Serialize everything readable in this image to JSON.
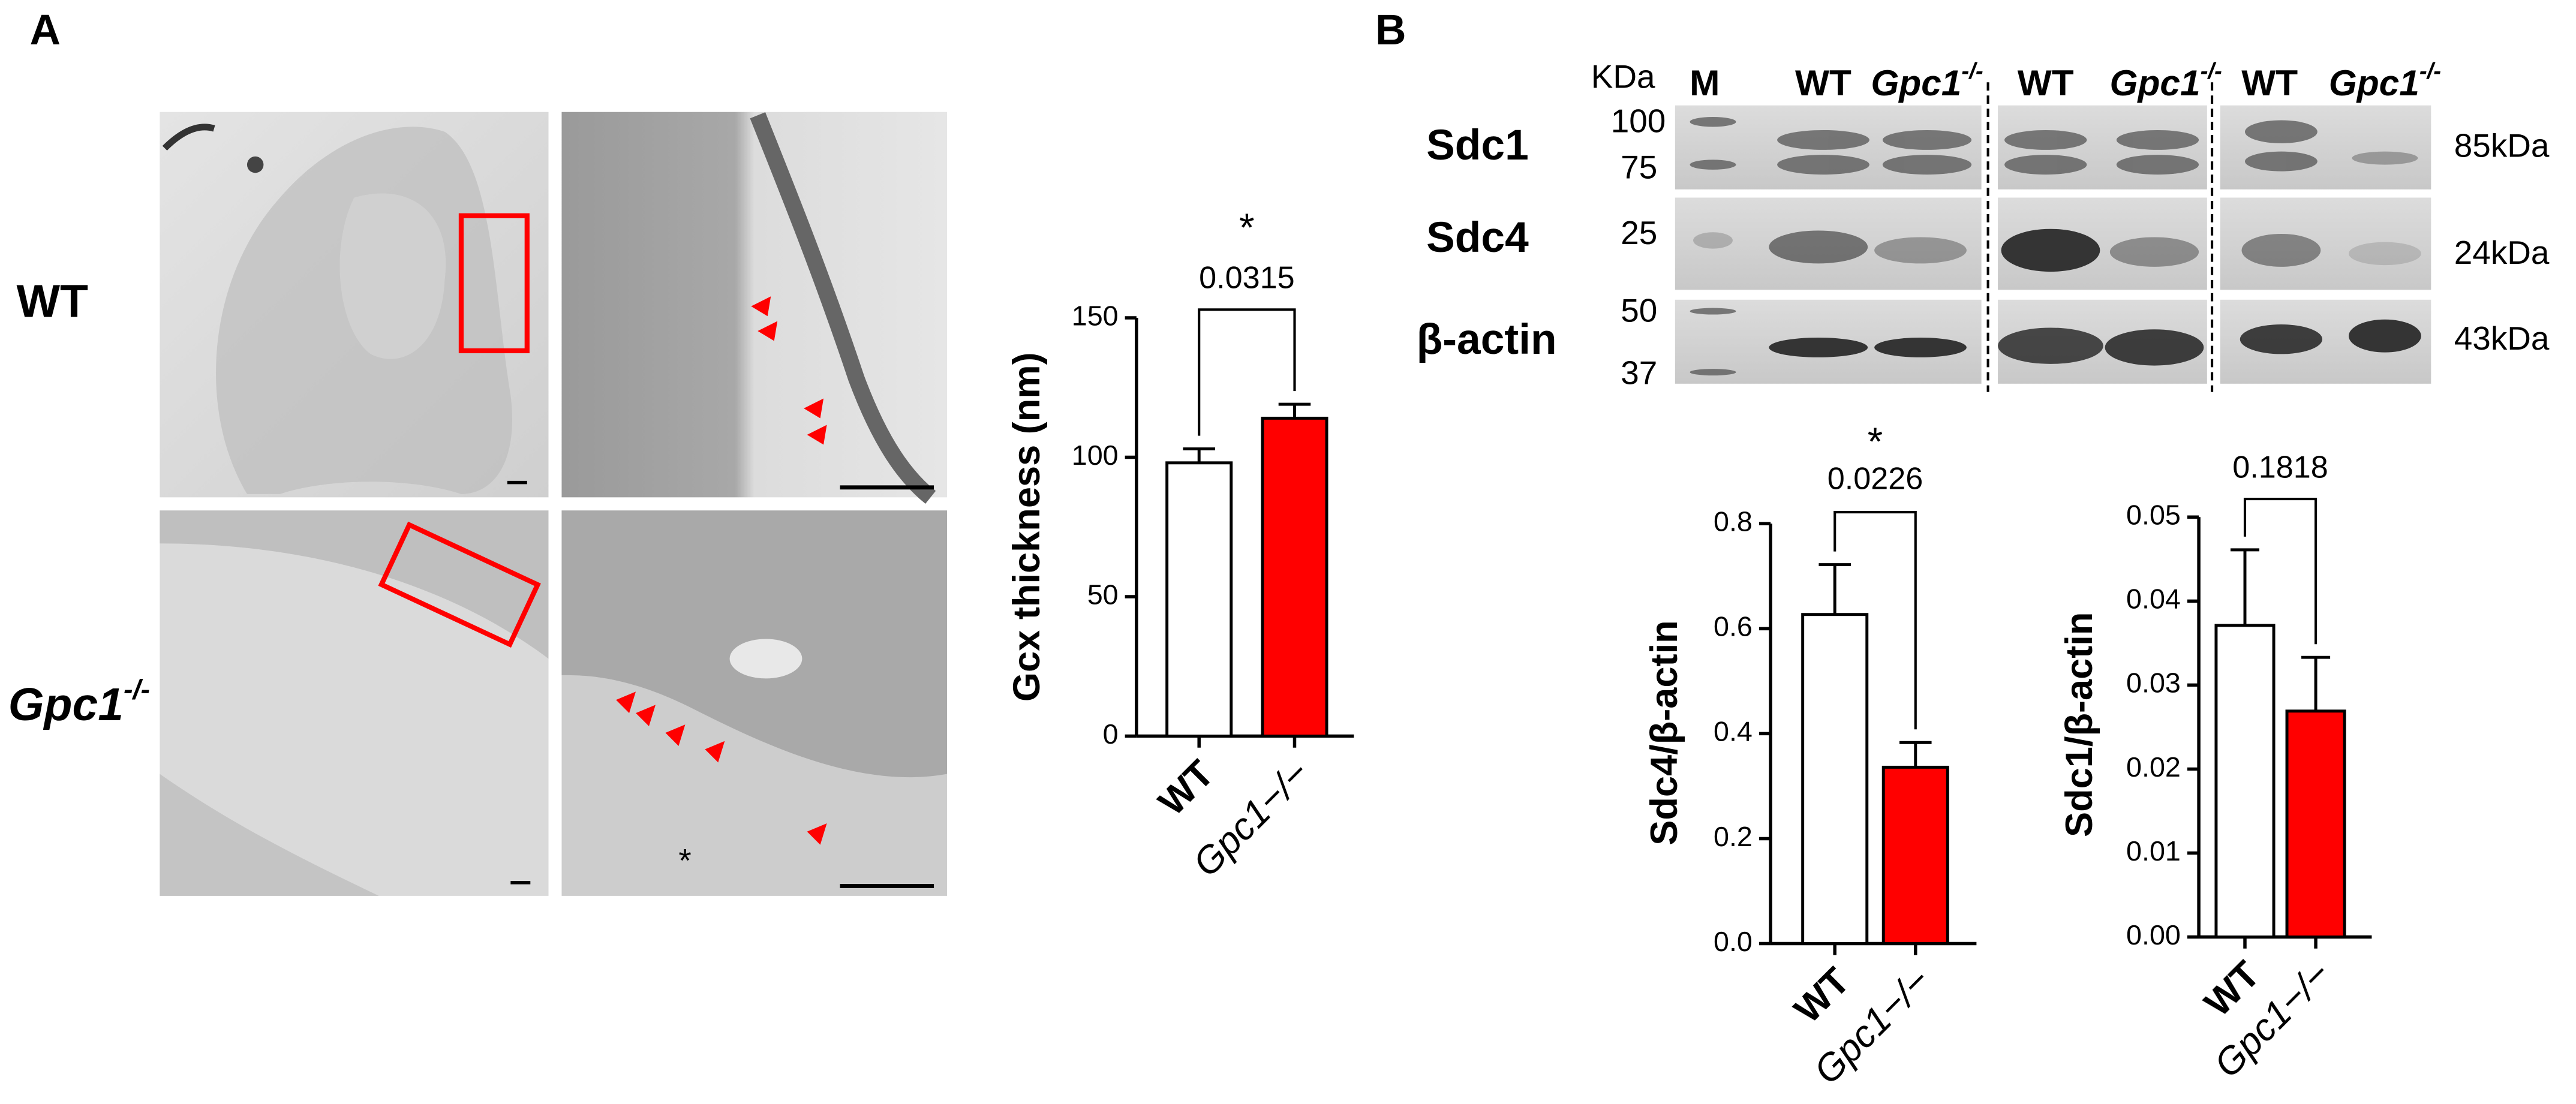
{
  "panel_a": {
    "label": "A",
    "row_wt": "WT",
    "row_ko": {
      "base": "Gpc1",
      "sup": "-/-"
    },
    "asterisk": "*"
  },
  "panel_b": {
    "label": "B",
    "size_unit": "KDa",
    "lanes": [
      {
        "base": "M"
      },
      {
        "base": "WT"
      },
      {
        "base": "Gpc1",
        "sup": "-/-"
      },
      {
        "base": "WT"
      },
      {
        "base": "Gpc1",
        "sup": "-/-"
      },
      {
        "base": "WT"
      },
      {
        "base": "Gpc1",
        "sup": "-/-"
      }
    ],
    "proteins": [
      "Sdc1",
      "Sdc4",
      "β-actin"
    ],
    "markers": [
      "100",
      "75",
      "25",
      "50",
      "37"
    ],
    "sizes": [
      "85kDa",
      "24kDa",
      "43kDa"
    ]
  },
  "chart_data": [
    {
      "type": "bar",
      "ylabel": "Gcx thickness (nm)",
      "categories": [
        "WT",
        "Gpc1−/−"
      ],
      "values": [
        98,
        114
      ],
      "errors": [
        5,
        5
      ],
      "colors": [
        "#ffffff",
        "#ff0000"
      ],
      "ylim": [
        0,
        150
      ],
      "yticks": [
        0,
        50,
        100,
        150
      ],
      "annotations": {
        "star": "*",
        "p_value": "0.0315"
      }
    },
    {
      "type": "bar",
      "ylabel": "Sdc4/β-actin",
      "categories": [
        "WT",
        "Gpc1−/−"
      ],
      "values": [
        0.627,
        0.336
      ],
      "errors": [
        0.095,
        0.047
      ],
      "colors": [
        "#ffffff",
        "#ff0000"
      ],
      "ylim": [
        0,
        0.8
      ],
      "yticks": [
        {
          "value": 0,
          "label": "0.0"
        },
        0.2,
        0.4,
        0.6,
        0.8
      ],
      "annotations": {
        "star": "*",
        "p_value": "0.0226"
      }
    },
    {
      "type": "bar",
      "ylabel": "Sdc1/β-actin",
      "categories": [
        "WT",
        "Gpc1−/−"
      ],
      "values": [
        0.0371,
        0.0269
      ],
      "errors": [
        0.009,
        0.0064
      ],
      "colors": [
        "#ffffff",
        "#ff0000"
      ],
      "ylim": [
        0,
        0.05
      ],
      "yticks": [
        {
          "value": 0,
          "label": "0.00"
        },
        0.01,
        0.02,
        0.03,
        0.04,
        0.05
      ],
      "annotations": {
        "p_value": "0.1818"
      }
    }
  ]
}
